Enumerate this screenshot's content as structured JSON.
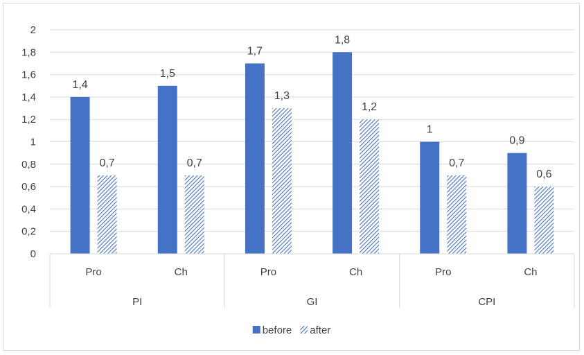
{
  "chart_data": {
    "type": "bar",
    "title": "",
    "xlabel": "",
    "ylabel": "",
    "ylim": [
      0,
      2
    ],
    "yticks": [
      "0",
      "0,2",
      "0,4",
      "0,6",
      "0,8",
      "1",
      "1,2",
      "1,4",
      "1,6",
      "1,8",
      "2"
    ],
    "grid": true,
    "legend_position": "bottom",
    "groups": [
      {
        "label": "PI",
        "categories": [
          "Pro",
          "Ch"
        ]
      },
      {
        "label": "GI",
        "categories": [
          "Pro",
          "Ch"
        ]
      },
      {
        "label": "CPI",
        "categories": [
          "Pro",
          "Ch"
        ]
      }
    ],
    "series": [
      {
        "name": "before",
        "color": "#4472c4",
        "style": "solid",
        "values": [
          1.4,
          1.5,
          1.7,
          1.8,
          1.0,
          0.9
        ],
        "labels": [
          "1,4",
          "1,5",
          "1,7",
          "1,8",
          "1",
          "0,9"
        ]
      },
      {
        "name": "after",
        "color": "#4472c4",
        "style": "hatched",
        "values": [
          0.7,
          0.7,
          1.3,
          1.2,
          0.7,
          0.6
        ],
        "labels": [
          "0,7",
          "0,7",
          "1,3",
          "1,2",
          "0,7",
          "0,6"
        ]
      }
    ]
  }
}
